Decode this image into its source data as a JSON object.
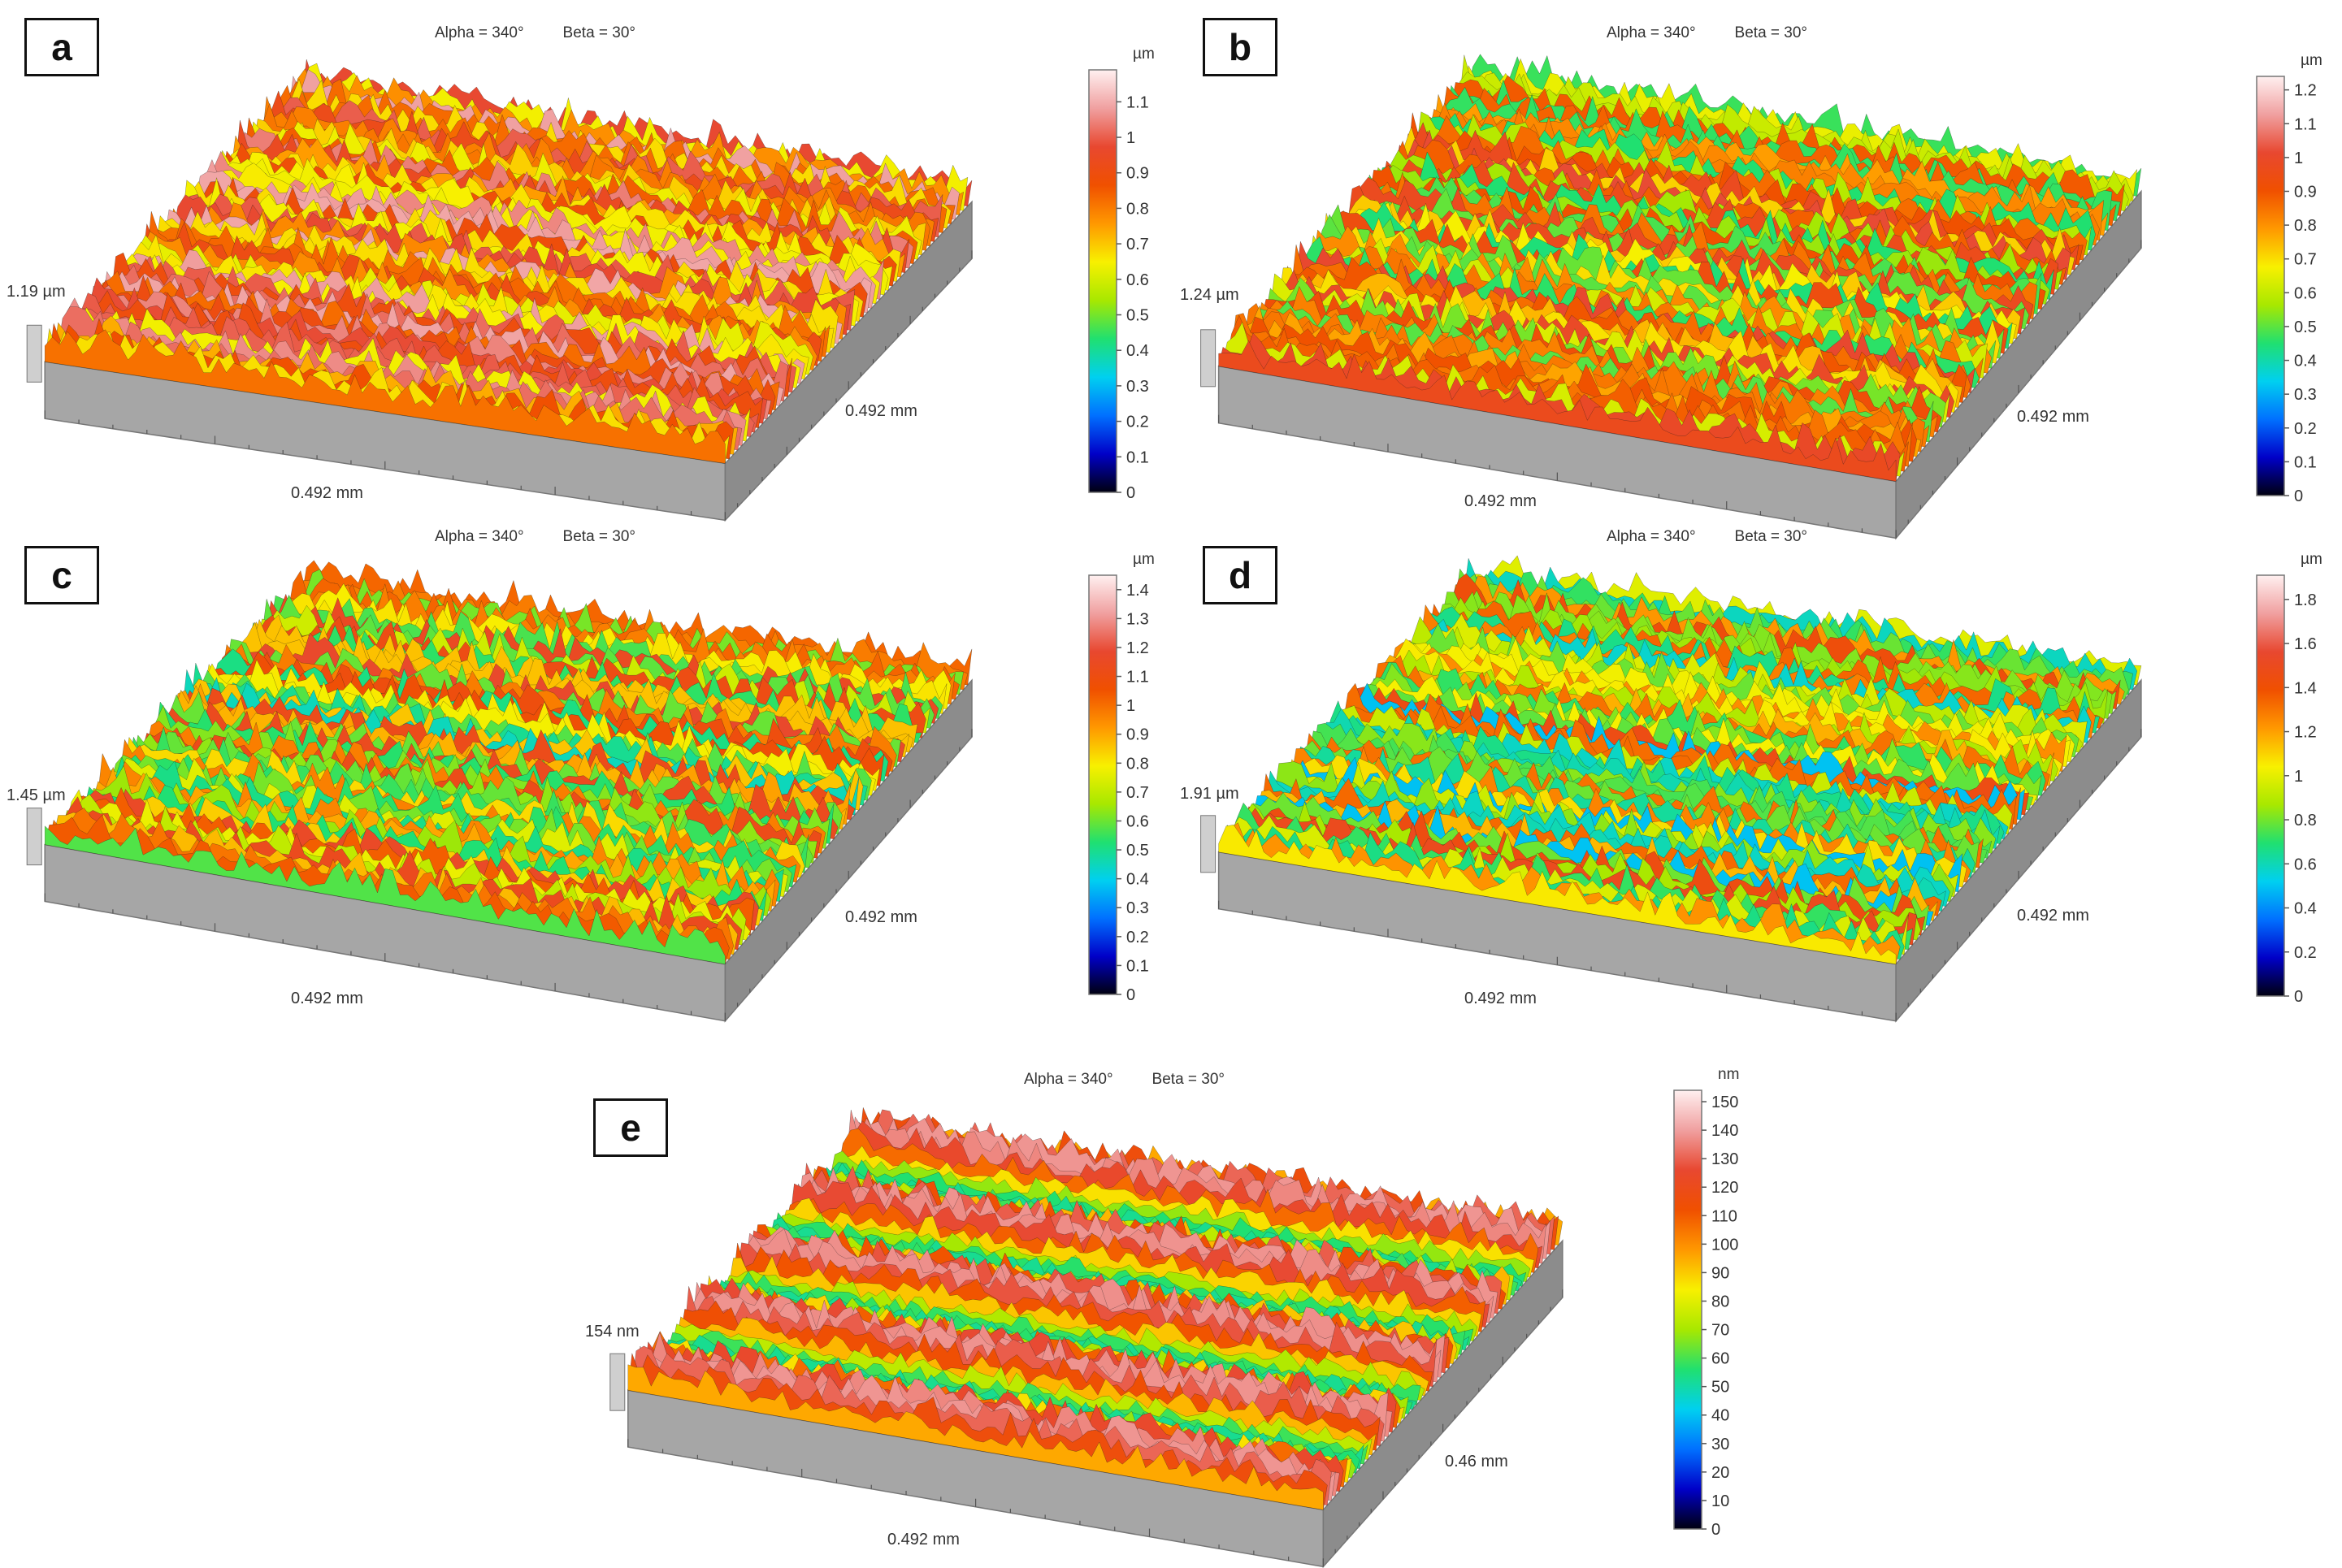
{
  "panels": [
    {
      "id": "a",
      "label": "a",
      "alpha": "Alpha = 340°",
      "beta": "Beta = 30°",
      "z_label": "1.19 µm",
      "x_label": "0.492 mm",
      "y_label": "0.492 mm",
      "unit": "µm",
      "ticks": [
        "1.1",
        "1",
        "0.9",
        "0.8",
        "0.7",
        "0.6",
        "0.5",
        "0.4",
        "0.3",
        "0.2",
        "0.1",
        "0"
      ],
      "tick_values": [
        1.1,
        1,
        0.9,
        0.8,
        0.7,
        0.6,
        0.5,
        0.4,
        0.3,
        0.2,
        0.1,
        0
      ],
      "scale_max": 1.19
    },
    {
      "id": "b",
      "label": "b",
      "alpha": "Alpha = 340°",
      "beta": "Beta = 30°",
      "z_label": "1.24 µm",
      "x_label": "0.492 mm",
      "y_label": "0.492 mm",
      "unit": "µm",
      "ticks": [
        "1.2",
        "1.1",
        "1",
        "0.9",
        "0.8",
        "0.7",
        "0.6",
        "0.5",
        "0.4",
        "0.3",
        "0.2",
        "0.1",
        "0"
      ],
      "tick_values": [
        1.2,
        1.1,
        1,
        0.9,
        0.8,
        0.7,
        0.6,
        0.5,
        0.4,
        0.3,
        0.2,
        0.1,
        0
      ],
      "scale_max": 1.24
    },
    {
      "id": "c",
      "label": "c",
      "alpha": "Alpha = 340°",
      "beta": "Beta = 30°",
      "z_label": "1.45 µm",
      "x_label": "0.492 mm",
      "y_label": "0.492 mm",
      "unit": "µm",
      "ticks": [
        "1.4",
        "1.3",
        "1.2",
        "1.1",
        "1",
        "0.9",
        "0.8",
        "0.7",
        "0.6",
        "0.5",
        "0.4",
        "0.3",
        "0.2",
        "0.1",
        "0"
      ],
      "tick_values": [
        1.4,
        1.3,
        1.2,
        1.1,
        1,
        0.9,
        0.8,
        0.7,
        0.6,
        0.5,
        0.4,
        0.3,
        0.2,
        0.1,
        0
      ],
      "scale_max": 1.45
    },
    {
      "id": "d",
      "label": "d",
      "alpha": "Alpha = 340°",
      "beta": "Beta = 30°",
      "z_label": "1.91 µm",
      "x_label": "0.492 mm",
      "y_label": "0.492 mm",
      "unit": "µm",
      "ticks": [
        "1.8",
        "1.6",
        "1.4",
        "1.2",
        "1",
        "0.8",
        "0.6",
        "0.4",
        "0.2",
        "0"
      ],
      "tick_values": [
        1.8,
        1.6,
        1.4,
        1.2,
        1,
        0.8,
        0.6,
        0.4,
        0.2,
        0
      ],
      "scale_max": 1.91
    },
    {
      "id": "e",
      "label": "e",
      "alpha": "Alpha = 340°",
      "beta": "Beta = 30°",
      "z_label": "154 nm",
      "x_label": "0.492 mm",
      "y_label": "0.46 mm",
      "unit": "nm",
      "ticks": [
        "150",
        "140",
        "130",
        "120",
        "110",
        "100",
        "90",
        "80",
        "70",
        "60",
        "50",
        "40",
        "30",
        "20",
        "10",
        "0"
      ],
      "tick_values": [
        150,
        140,
        130,
        120,
        110,
        100,
        90,
        80,
        70,
        60,
        50,
        40,
        30,
        20,
        10,
        0
      ],
      "scale_max": 154
    }
  ],
  "colors": {
    "base": "#a6a6a6",
    "base_dark": "#8c8c8c",
    "axis": "#555555",
    "scale": [
      "#000010",
      "#0000c8",
      "#0070ff",
      "#00d0f0",
      "#20e070",
      "#a8e800",
      "#f8f000",
      "#ff9800",
      "#f05000",
      "#e84830",
      "#f0a0a0",
      "#fff0f0"
    ]
  }
}
